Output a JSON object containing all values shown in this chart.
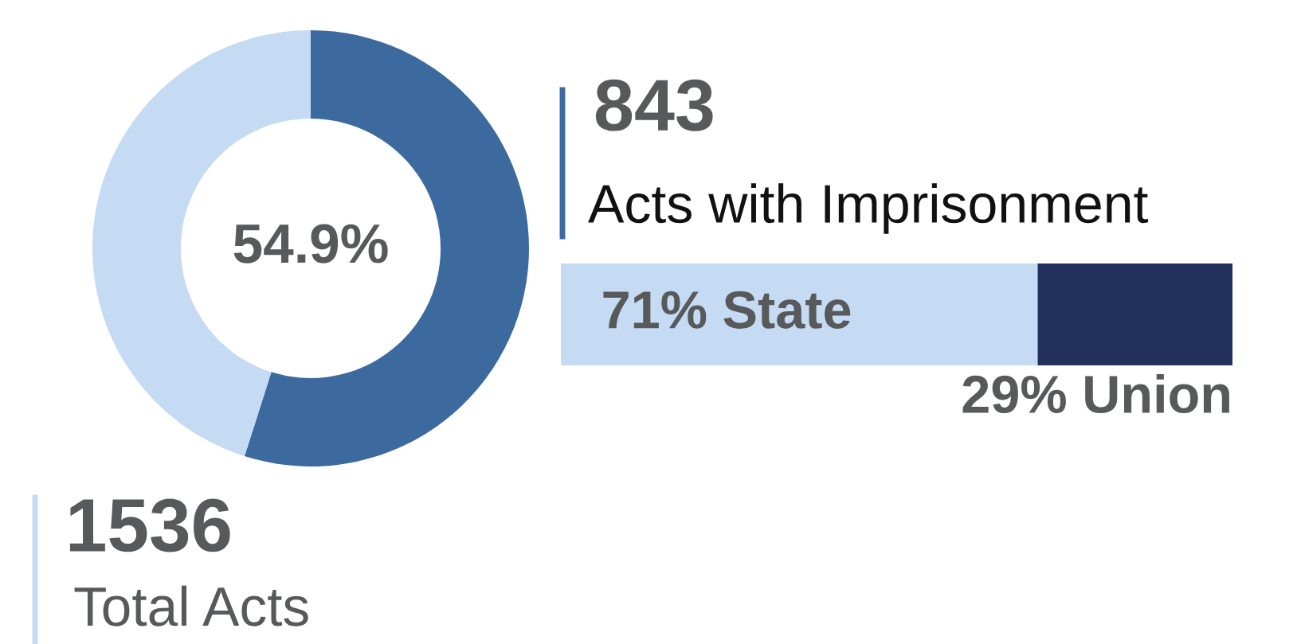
{
  "chart_data": [
    {
      "type": "donut",
      "categories": [
        null,
        null
      ],
      "values": [
        54.9,
        45.1
      ],
      "colors": [
        "#3d6a9e",
        "#c5dbf3"
      ],
      "value_labels": [
        "54.9%",
        null
      ],
      "annotations": [
        "843",
        "Acts with Imprisonment",
        "1536",
        "Total Acts"
      ]
    },
    {
      "type": "bar",
      "orientation": "horizontal",
      "stacked": true,
      "categories": [
        null
      ],
      "series": [
        {
          "color": "#c5dbf3",
          "values": [
            71
          ],
          "value_labels": [
            "71% State"
          ]
        },
        {
          "color": "#22305c",
          "values": [
            29
          ],
          "value_labels": [
            "29% Union"
          ]
        }
      ]
    }
  ]
}
